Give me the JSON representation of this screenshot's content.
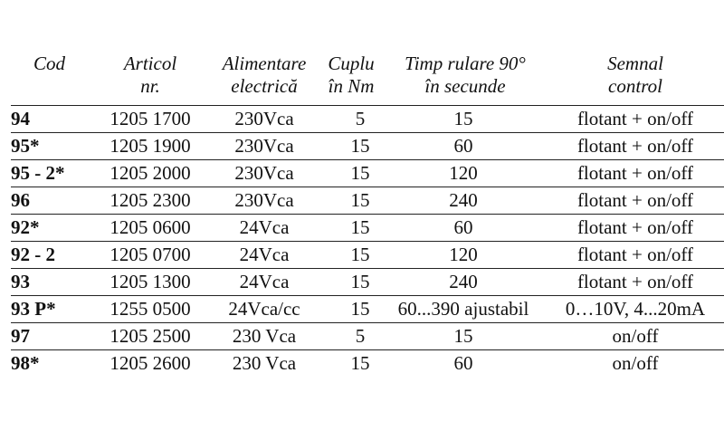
{
  "headers": {
    "cod": [
      "Cod"
    ],
    "articol": [
      "Articol",
      "nr."
    ],
    "alimentare": [
      "Alimentare",
      "electrică"
    ],
    "cuplu": [
      "Cuplu",
      "în Nm"
    ],
    "timp": [
      "Timp rulare 90°",
      "în secunde"
    ],
    "semnal": [
      "Semnal",
      "control"
    ]
  },
  "rows": [
    {
      "cod": "94",
      "articol": "1205 1700",
      "alimentare": "230Vca",
      "cuplu": "5",
      "timp": "15",
      "semnal": "flotant + on/off"
    },
    {
      "cod": "95*",
      "articol": "1205 1900",
      "alimentare": "230Vca",
      "cuplu": "15",
      "timp": "60",
      "semnal": "flotant + on/off"
    },
    {
      "cod": "95 - 2*",
      "articol": "1205 2000",
      "alimentare": "230Vca",
      "cuplu": "15",
      "timp": "120",
      "semnal": "flotant + on/off"
    },
    {
      "cod": "96",
      "articol": "1205 2300",
      "alimentare": "230Vca",
      "cuplu": "15",
      "timp": "240",
      "semnal": "flotant + on/off"
    },
    {
      "cod": "92*",
      "articol": "1205 0600",
      "alimentare": "24Vca",
      "cuplu": "15",
      "timp": "60",
      "semnal": "flotant + on/off"
    },
    {
      "cod": "92 - 2",
      "articol": "1205 0700",
      "alimentare": "24Vca",
      "cuplu": "15",
      "timp": "120",
      "semnal": "flotant + on/off"
    },
    {
      "cod": "93",
      "articol": "1205 1300",
      "alimentare": "24Vca",
      "cuplu": "15",
      "timp": "240",
      "semnal": "flotant + on/off"
    },
    {
      "cod": "93 P*",
      "articol": "1255 0500",
      "alimentare": "24Vca/cc",
      "cuplu": "15",
      "timp": "60...390 ajustabil",
      "semnal": "0…10V, 4...20mA"
    },
    {
      "cod": "97",
      "articol": "1205 2500",
      "alimentare": "230 Vca",
      "cuplu": "5",
      "timp": "15",
      "semnal": "on/off"
    },
    {
      "cod": "98*",
      "articol": "1205 2600",
      "alimentare": "230 Vca",
      "cuplu": "15",
      "timp": "60",
      "semnal": "on/off"
    }
  ]
}
